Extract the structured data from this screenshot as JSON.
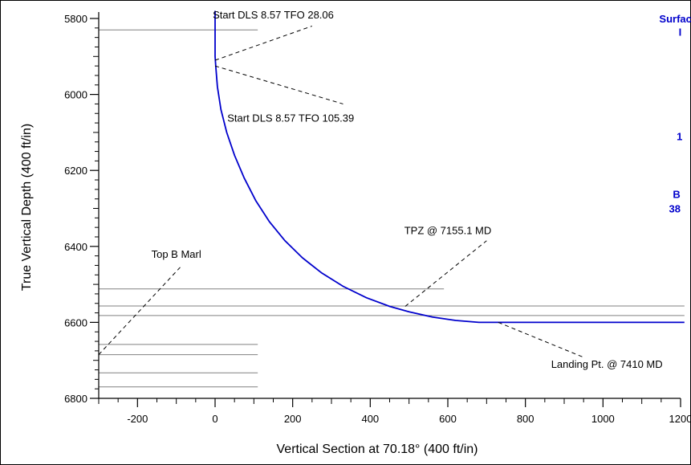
{
  "chart_data": {
    "type": "line",
    "xlabel": "Vertical Section at 70.18° (400 ft/in)",
    "ylabel": "True Vertical Depth (400 ft/in)",
    "xlim": [
      -300,
      1200
    ],
    "ylim": [
      5800,
      6800
    ],
    "y_inverted": true,
    "x_ticks": [
      -200,
      0,
      200,
      400,
      600,
      800,
      1000,
      1200
    ],
    "y_ticks": [
      5800,
      6000,
      6200,
      6400,
      6600,
      6800
    ],
    "grid": false,
    "series": [
      {
        "color": "#0000cc",
        "points": [
          [
            0,
            5780
          ],
          [
            0,
            5900
          ],
          [
            2,
            5930
          ],
          [
            6,
            5980
          ],
          [
            15,
            6040
          ],
          [
            30,
            6100
          ],
          [
            50,
            6160
          ],
          [
            75,
            6220
          ],
          [
            105,
            6280
          ],
          [
            140,
            6335
          ],
          [
            180,
            6385
          ],
          [
            225,
            6430
          ],
          [
            275,
            6470
          ],
          [
            330,
            6505
          ],
          [
            390,
            6535
          ],
          [
            450,
            6558
          ],
          [
            500,
            6572
          ],
          [
            560,
            6586
          ],
          [
            620,
            6595
          ],
          [
            680,
            6600
          ],
          [
            750,
            6600
          ],
          [
            1000,
            6600
          ],
          [
            1210,
            6600
          ]
        ]
      }
    ],
    "formation_lines": [
      {
        "tvd": 5830,
        "x_start": -300,
        "x_end": 110
      },
      {
        "tvd": 6512,
        "x_start": -300,
        "x_end": 590
      },
      {
        "tvd": 6557,
        "x_start": -300,
        "x_end": 1210
      },
      {
        "tvd": 6582,
        "x_start": -300,
        "x_end": 1210
      },
      {
        "tvd": 6658,
        "x_start": -300,
        "x_end": 110
      },
      {
        "tvd": 6685,
        "x_start": -300,
        "x_end": 110
      },
      {
        "tvd": 6733,
        "x_start": -300,
        "x_end": 110
      },
      {
        "tvd": 6770,
        "x_start": -300,
        "x_end": 110
      }
    ],
    "annotations": [
      {
        "text": "Start DLS 8.57 TFO 28.06",
        "point": [
          0,
          5910
        ],
        "line_end": [
          250,
          5820
        ],
        "text_pos": [
          150,
          5800
        ]
      },
      {
        "text": "Start DLS 8.57 TFO 105.39",
        "point": [
          0,
          5925
        ],
        "line_end": [
          330,
          6025
        ],
        "text_pos": [
          195,
          6072
        ]
      },
      {
        "text": "TPZ @ 7155.1 MD",
        "point": [
          490,
          6558
        ],
        "line_end": [
          700,
          6385
        ],
        "text_pos": [
          600,
          6368
        ]
      },
      {
        "text": "Top B Marl",
        "point": [
          -300,
          6685
        ],
        "line_end": [
          -90,
          6455
        ],
        "text_pos": [
          -100,
          6430
        ]
      },
      {
        "text": "Landing Pt. @ 7410 MD",
        "point": [
          730,
          6600
        ],
        "line_end": [
          950,
          6692
        ],
        "text_pos": [
          1010,
          6720
        ]
      }
    ],
    "clipped_right_text": [
      {
        "text": "Surface",
        "tvd": 5800,
        "x": 1145
      },
      {
        "text": "I",
        "tvd": 5835,
        "x": 1195
      },
      {
        "text": "1",
        "tvd": 6110,
        "x": 1190
      },
      {
        "text": "B",
        "tvd": 6262,
        "x": 1180
      },
      {
        "text": "38",
        "tvd": 6300,
        "x": 1170
      }
    ],
    "clipped_text_color": "#0000cc"
  }
}
